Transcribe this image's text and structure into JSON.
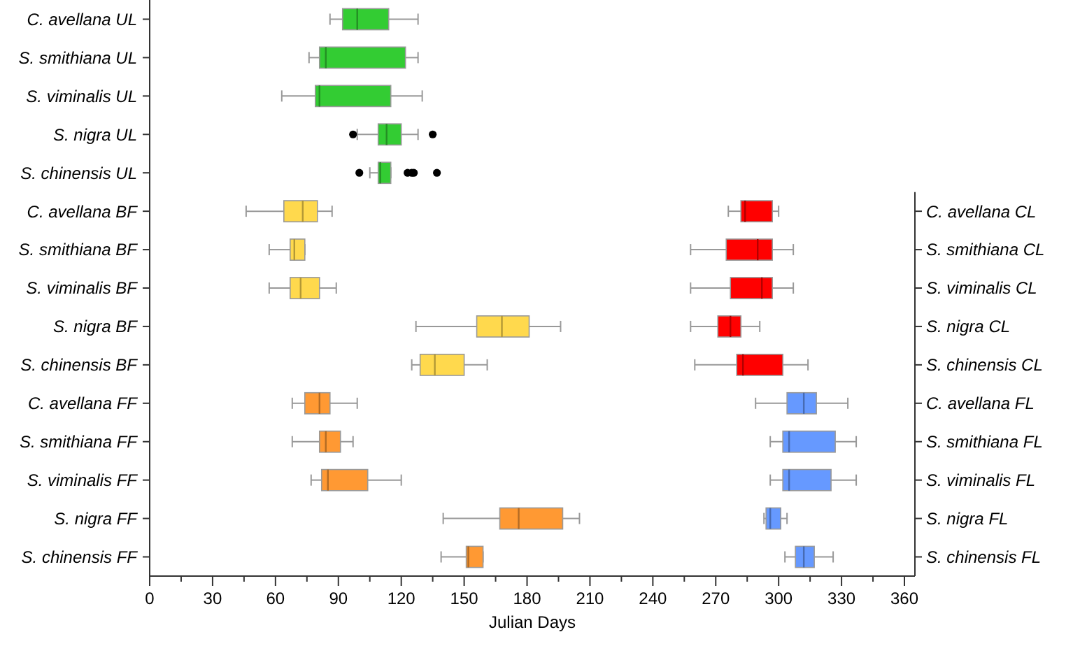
{
  "chart_data": {
    "type": "box",
    "orientation": "horizontal",
    "xlabel": "Julian Days",
    "categories": [
      "C. avellana UL",
      "S. smithiana UL",
      "S. viminalis UL",
      "S. nigra UL",
      "S. chinensis UL",
      "C. avellana BF",
      "S. smithiana BF",
      "S. viminalis BF",
      "S. nigra BF",
      "S. chinensis BF",
      "C. avellana FF",
      "S. smithiana FF",
      "S. viminalis FF",
      "S. nigra FF",
      "S. chinensis FF"
    ],
    "y2_categories": [
      null,
      null,
      null,
      null,
      null,
      "C. avellana CL",
      "S. smithiana CL",
      "S. viminalis CL",
      "S. nigra CL",
      "S. chinensis CL",
      "C. avellana FL",
      "S. smithiana FL",
      "S. viminalis FL",
      "S. nigra FL",
      "S. chinensis FL"
    ],
    "xlim": [
      0,
      365
    ],
    "xticks": [
      0,
      {
        "value": 15,
        "label": null
      },
      30,
      {
        "value": 45,
        "label": null
      },
      60,
      {
        "value": 75,
        "label": null
      },
      90,
      {
        "value": 105,
        "label": null
      },
      120,
      {
        "value": 135,
        "label": null
      },
      150,
      {
        "value": 165,
        "label": null
      },
      180,
      {
        "value": 195,
        "label": null
      },
      210,
      {
        "value": 225,
        "label": null
      },
      240,
      {
        "value": 255,
        "label": null
      },
      270,
      {
        "value": 285,
        "label": null
      },
      300,
      {
        "value": 315,
        "label": null
      },
      330,
      {
        "value": 345,
        "label": null
      },
      360
    ],
    "grid": false,
    "series": [
      {
        "color": "#33cc33",
        "boxes": [
          {
            "low": 86,
            "q1": 92,
            "median": 99,
            "q3": 114,
            "high": 128
          },
          {
            "low": 76,
            "q1": 81,
            "median": 84,
            "q3": 122,
            "high": 128
          },
          {
            "low": 63,
            "q1": 79,
            "median": 81,
            "q3": 115,
            "high": 130
          },
          {
            "low": 99,
            "q1": 109,
            "median": 113,
            "q3": 120,
            "high": 128,
            "outliers": [
              97,
              135
            ]
          },
          {
            "low": 105,
            "q1": 109,
            "median": 110,
            "q3": 115,
            "high": 115,
            "outliers": [
              100,
              123,
              125,
              126,
              137
            ]
          },
          null,
          null,
          null,
          null,
          null,
          null,
          null,
          null,
          null,
          null
        ]
      },
      {
        "color": "#ffd94d",
        "boxes": [
          null,
          null,
          null,
          null,
          null,
          {
            "low": 46,
            "q1": 64,
            "median": 73,
            "q3": 80,
            "high": 87
          },
          {
            "low": 57,
            "q1": 67,
            "median": 69,
            "q3": 74,
            "high": 74
          },
          {
            "low": 57,
            "q1": 67,
            "median": 72,
            "q3": 81,
            "high": 89
          },
          {
            "low": 127,
            "q1": 156,
            "median": 168,
            "q3": 181,
            "high": 196
          },
          {
            "low": 125,
            "q1": 129,
            "median": 136,
            "q3": 150,
            "high": 161
          },
          null,
          null,
          null,
          null,
          null
        ]
      },
      {
        "color": "#ff9933",
        "boxes": [
          null,
          null,
          null,
          null,
          null,
          null,
          null,
          null,
          null,
          null,
          {
            "low": 68,
            "q1": 74,
            "median": 81,
            "q3": 86,
            "high": 99
          },
          {
            "low": 68,
            "q1": 81,
            "median": 84,
            "q3": 91,
            "high": 97
          },
          {
            "low": 77,
            "q1": 82,
            "median": 85,
            "q3": 104,
            "high": 120
          },
          {
            "low": 140,
            "q1": 167,
            "median": 176,
            "q3": 197,
            "high": 205
          },
          {
            "low": 139,
            "q1": 151,
            "median": 152,
            "q3": 159,
            "high": 159
          }
        ]
      },
      {
        "color": "#ff0000",
        "boxes": [
          null,
          null,
          null,
          null,
          null,
          {
            "low": 276,
            "q1": 282,
            "median": 284,
            "q3": 297,
            "high": 300
          },
          {
            "low": 258,
            "q1": 275,
            "median": 290,
            "q3": 297,
            "high": 307
          },
          {
            "low": 258,
            "q1": 277,
            "median": 292,
            "q3": 297,
            "high": 307
          },
          {
            "low": 258,
            "q1": 271,
            "median": 277,
            "q3": 282,
            "high": 291
          },
          {
            "low": 260,
            "q1": 280,
            "median": 283,
            "q3": 302,
            "high": 314
          },
          null,
          null,
          null,
          null,
          null
        ]
      },
      {
        "color": "#6699ff",
        "boxes": [
          null,
          null,
          null,
          null,
          null,
          null,
          null,
          null,
          null,
          null,
          {
            "low": 289,
            "q1": 304,
            "median": 312,
            "q3": 318,
            "high": 333
          },
          {
            "low": 296,
            "q1": 302,
            "median": 305,
            "q3": 327,
            "high": 337
          },
          {
            "low": 296,
            "q1": 302,
            "median": 305,
            "q3": 325,
            "high": 337
          },
          {
            "low": 293,
            "q1": 294,
            "median": 296,
            "q3": 301,
            "high": 304
          },
          {
            "low": 303,
            "q1": 308,
            "median": 312,
            "q3": 317,
            "high": 326
          }
        ]
      }
    ]
  }
}
